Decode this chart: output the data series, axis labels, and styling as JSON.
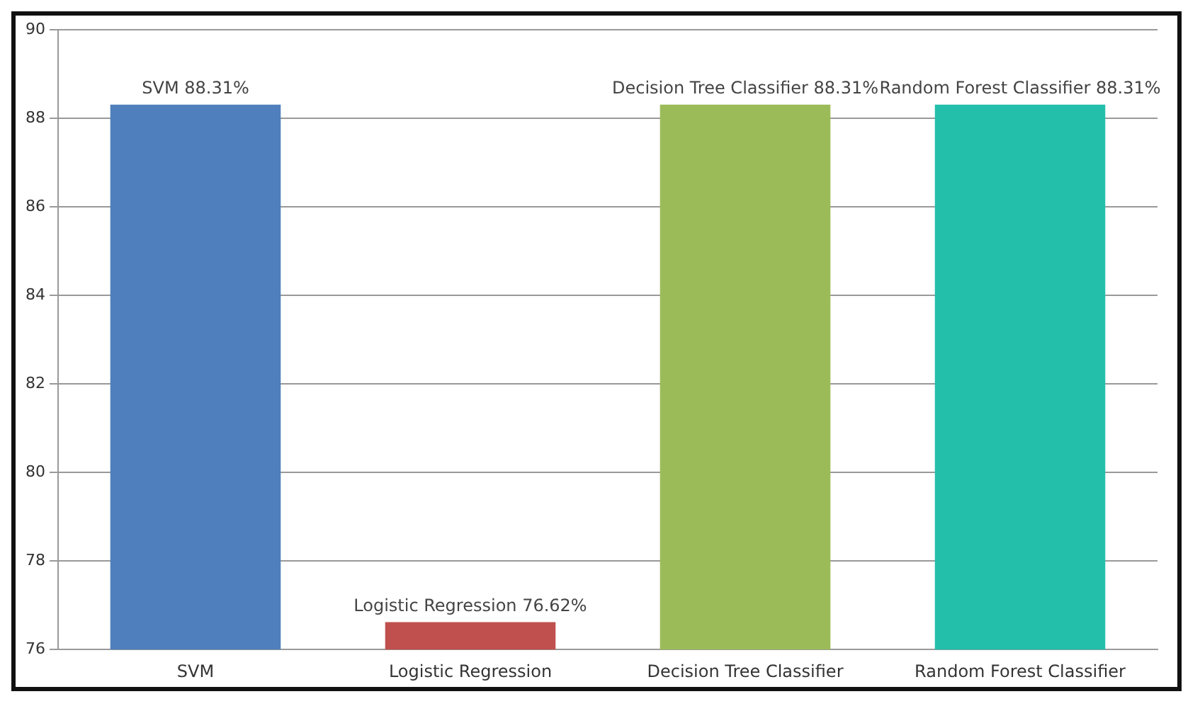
{
  "chart_data": {
    "type": "bar",
    "categories": [
      "SVM",
      "Logistic Regression",
      "Decision Tree Classifier",
      "Random Forest Classifier"
    ],
    "values": [
      88.31,
      76.62,
      88.31,
      88.31
    ],
    "colors": [
      "#4f7fbc",
      "#c0504d",
      "#9bbb59",
      "#23bfaa"
    ],
    "value_labels": [
      "SVM 88.31%",
      "Logistic Regression 76.62%",
      "Decision Tree Classifier 88.31%",
      "Random Forest Classifier 88.31%"
    ],
    "ylim": [
      76,
      90
    ],
    "yticks": [
      76,
      78,
      80,
      82,
      84,
      86,
      88,
      90
    ],
    "grid": "y",
    "legend": false
  }
}
